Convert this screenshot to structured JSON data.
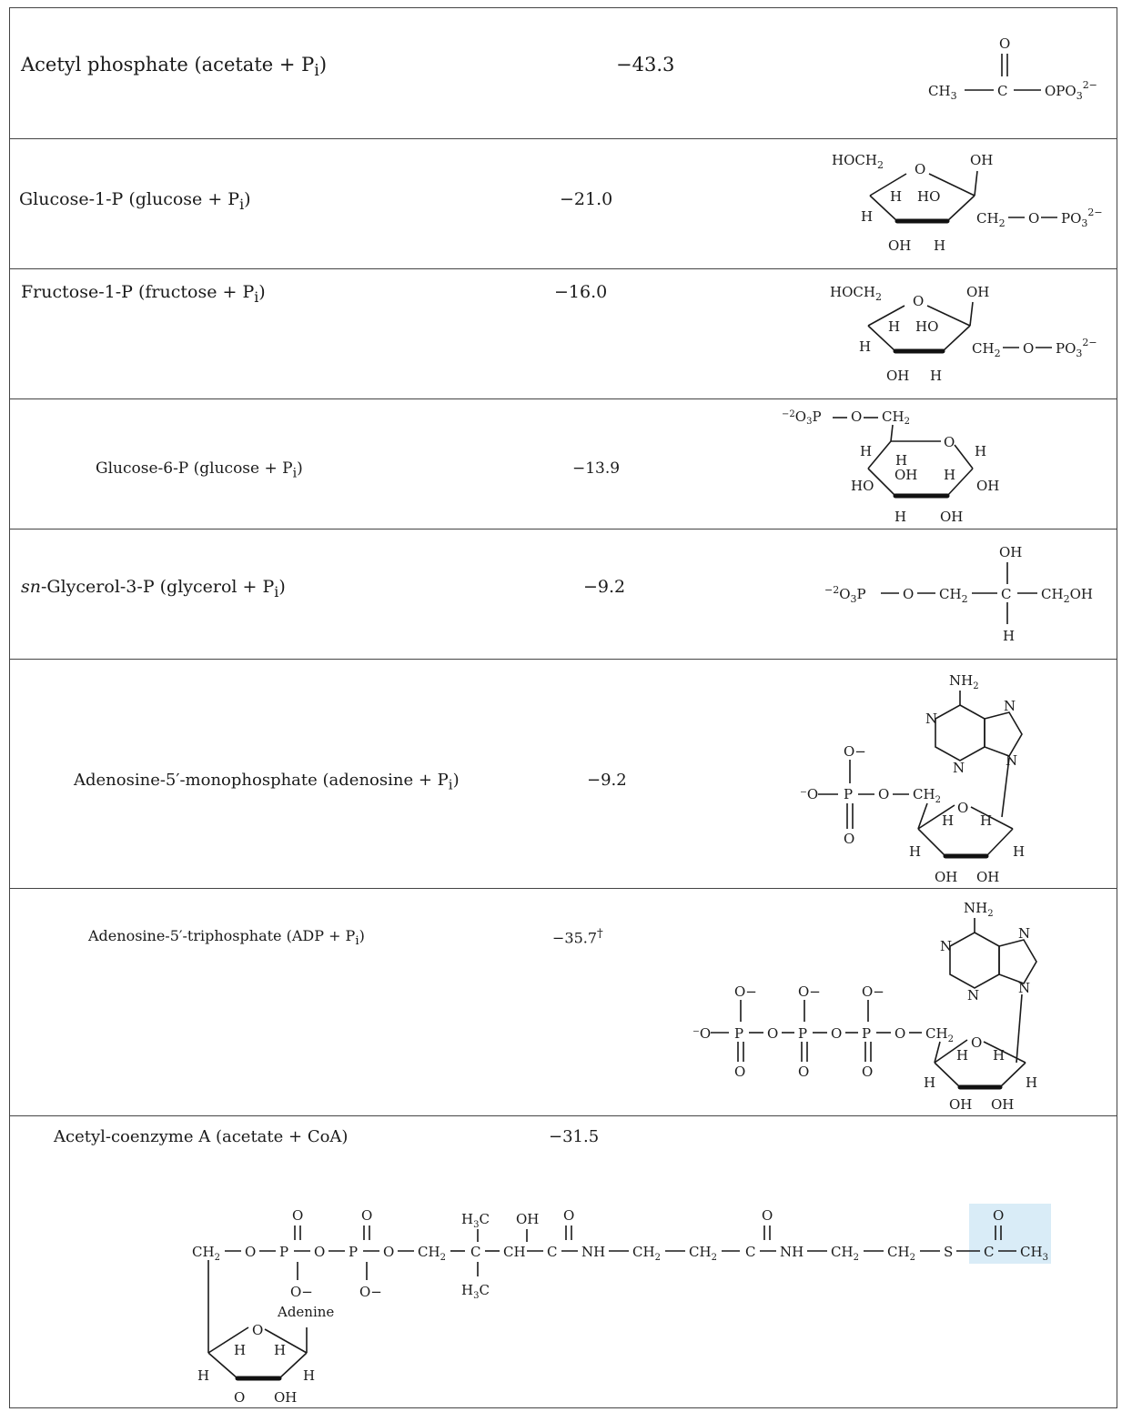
{
  "rows": [
    {
      "name": "Acetyl phosphate (acetate + P",
      "sub": "i",
      "close": ")",
      "value": "−43.3"
    },
    {
      "name": "Glucose-1-P (glucose + P",
      "sub": "i",
      "close": ")",
      "value": "−21.0"
    },
    {
      "name": "Fructose-1-P (fructose + P",
      "sub": "i",
      "close": ")",
      "value": "−16.0"
    },
    {
      "name": "Glucose-6-P (glucose + P",
      "sub": "i",
      "close": ")",
      "value": "−13.9"
    },
    {
      "prefix": "sn",
      "name": "-Glycerol-3-P (glycerol + P",
      "sub": "i",
      "close": ")",
      "value": "−9.2"
    },
    {
      "name": "Adenosine-5′-monophosphate (adenosine + P",
      "sub": "i",
      "close": ")",
      "value": "−9.2"
    },
    {
      "name": "Adenosine-5′-triphosphate (ADP + P",
      "sub": "i",
      "close": ")",
      "value": "−35.7",
      "dagger": "†"
    },
    {
      "name": "Acetyl-coenzyme A (acetate + CoA)",
      "value": "−31.5"
    }
  ],
  "structure_labels": {
    "acetyl_phosphate": {
      "o": "O",
      "ch3": "CH",
      "c": "C",
      "opo3": "OPO",
      "charge": "2−"
    },
    "ring": {
      "hoch2": "HOCH",
      "o": "O",
      "oh": "OH",
      "h": "H",
      "ho": "HO",
      "ch2": "CH",
      "po3": "PO",
      "charge": "2−",
      "sub2": "2",
      "sub3": "3"
    },
    "g6p": {
      "o3p": "O",
      "p": "P",
      "o": "O",
      "ch2": "CH",
      "charge": "−2"
    },
    "glycerol": {
      "oh": "OH",
      "h": "H",
      "c": "C",
      "ch2oh": "CH",
      "tail": "OH"
    },
    "adenine": {
      "nh2": "NH",
      "n": "N"
    },
    "phosphate": {
      "ominus": "O−",
      "p": "P",
      "o": "O"
    },
    "coa": {
      "ch2": "CH",
      "nh": "NH",
      "s": "S",
      "h3c": "H",
      "ch3": "CH",
      "ch": "CH",
      "oh": "OH",
      "adenine": "Adenine"
    }
  },
  "colors": {
    "highlight": "#d9ecf7",
    "border": "#444444"
  }
}
